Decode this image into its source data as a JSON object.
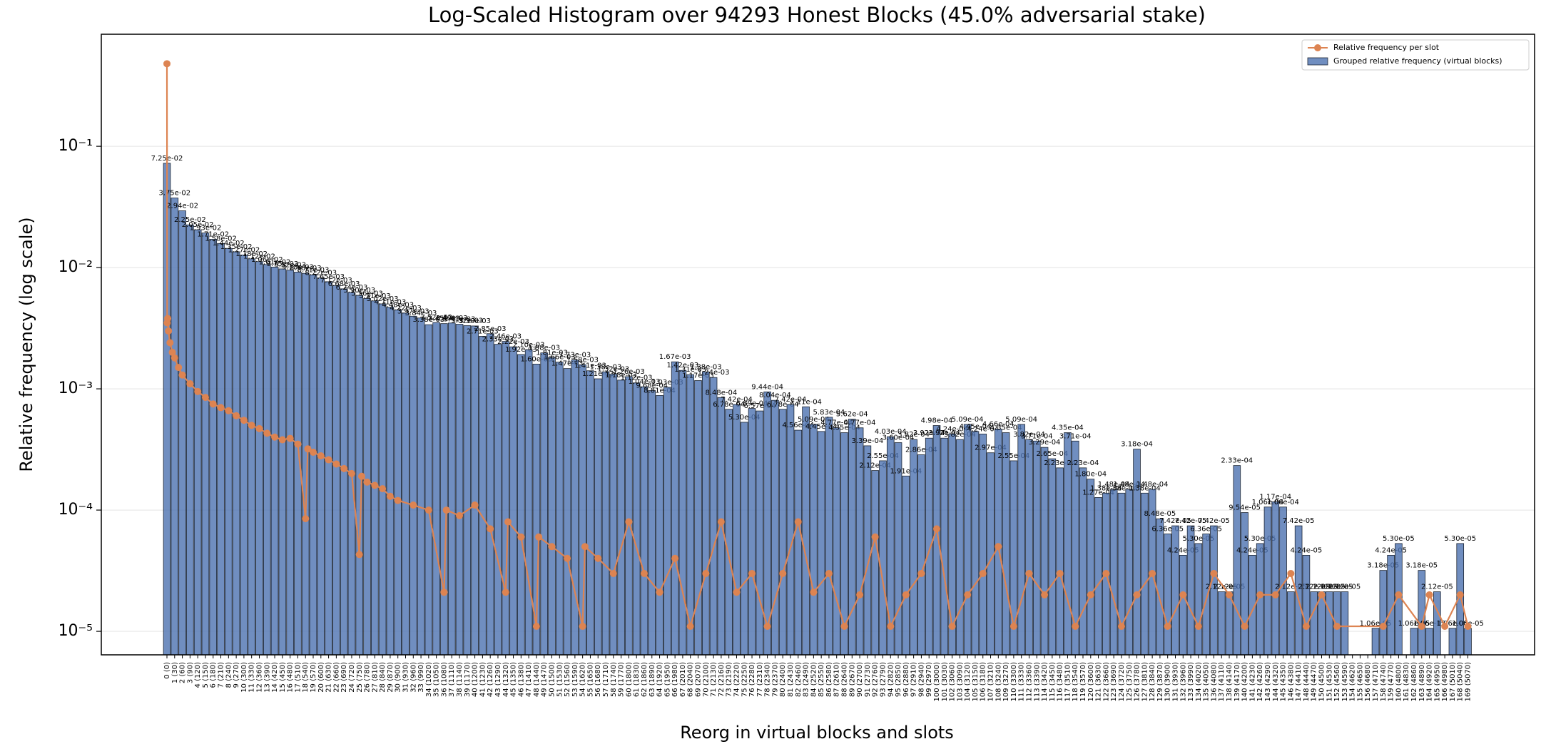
{
  "chart_data": {
    "type": "bar",
    "title": "Log-Scaled Histogram over 94293 Honest Blocks (45.0% adversarial stake)",
    "x_label": "Reorg in virtual blocks and slots",
    "y_label": "Relative frequency (log scale)",
    "log_scale": true,
    "grid": true,
    "legend": "upper right",
    "ylim": [
      6.4e-06,
      0.84
    ],
    "yticks": [
      {
        "value": 1e-05,
        "label": "10⁻⁵"
      },
      {
        "value": 0.0001,
        "label": "10⁻⁴"
      },
      {
        "value": 0.001,
        "label": "10⁻³"
      },
      {
        "value": 0.01,
        "label": "10⁻²"
      },
      {
        "value": 0.1,
        "label": "10⁻¹"
      }
    ],
    "categories": [
      "0 (0)",
      "1 (30)",
      "2 (60)",
      "3 (90)",
      "4 (120)",
      "5 (150)",
      "6 (180)",
      "7 (210)",
      "8 (240)",
      "9 (270)",
      "10 (300)",
      "11 (330)",
      "12 (360)",
      "13 (390)",
      "14 (420)",
      "15 (450)",
      "16 (480)",
      "17 (510)",
      "18 (540)",
      "19 (570)",
      "20 (600)",
      "21 (630)",
      "22 (660)",
      "23 (690)",
      "24 (720)",
      "25 (750)",
      "26 (780)",
      "27 (810)",
      "28 (840)",
      "29 (870)",
      "30 (900)",
      "31 (930)",
      "32 (960)",
      "33 (990)",
      "34 (1020)",
      "35 (1050)",
      "36 (1080)",
      "37 (1110)",
      "38 (1140)",
      "39 (1170)",
      "40 (1200)",
      "41 (1230)",
      "42 (1260)",
      "43 (1290)",
      "44 (1320)",
      "45 (1350)",
      "46 (1380)",
      "47 (1410)",
      "48 (1440)",
      "49 (1470)",
      "50 (1500)",
      "51 (1530)",
      "52 (1560)",
      "53 (1590)",
      "54 (1620)",
      "55 (1650)",
      "56 (1680)",
      "57 (1710)",
      "58 (1740)",
      "59 (1770)",
      "60 (1800)",
      "61 (1830)",
      "62 (1860)",
      "63 (1890)",
      "64 (1920)",
      "65 (1950)",
      "66 (1980)",
      "67 (2010)",
      "68 (2040)",
      "69 (2070)",
      "70 (2100)",
      "71 (2130)",
      "72 (2160)",
      "73 (2190)",
      "74 (2220)",
      "75 (2250)",
      "76 (2280)",
      "77 (2310)",
      "78 (2340)",
      "79 (2370)",
      "80 (2400)",
      "81 (2430)",
      "82 (2460)",
      "83 (2490)",
      "84 (2520)",
      "85 (2550)",
      "86 (2580)",
      "87 (2610)",
      "88 (2640)",
      "89 (2670)",
      "90 (2700)",
      "91 (2730)",
      "92 (2760)",
      "93 (2790)",
      "94 (2820)",
      "95 (2850)",
      "96 (2880)",
      "97 (2910)",
      "98 (2940)",
      "99 (2970)",
      "100 (3000)",
      "101 (3030)",
      "102 (3060)",
      "103 (3090)",
      "104 (3120)",
      "105 (3150)",
      "106 (3180)",
      "107 (3210)",
      "108 (3240)",
      "109 (3270)",
      "110 (3300)",
      "111 (3330)",
      "112 (3360)",
      "113 (3390)",
      "114 (3420)",
      "115 (3450)",
      "116 (3480)",
      "117 (3510)",
      "118 (3540)",
      "119 (3570)",
      "120 (3600)",
      "121 (3630)",
      "122 (3660)",
      "123 (3690)",
      "124 (3720)",
      "125 (3750)",
      "126 (3780)",
      "127 (3810)",
      "128 (3840)",
      "129 (3870)",
      "130 (3900)",
      "131 (3930)",
      "132 (3960)",
      "133 (3990)",
      "134 (4020)",
      "135 (4050)",
      "136 (4080)",
      "137 (4110)",
      "138 (4140)",
      "139 (4170)",
      "140 (4200)",
      "141 (4230)",
      "142 (4260)",
      "143 (4290)",
      "144 (4320)",
      "145 (4350)",
      "146 (4380)",
      "147 (4410)",
      "148 (4440)",
      "149 (4470)",
      "150 (4500)",
      "151 (4530)",
      "152 (4560)",
      "153 (4590)",
      "154 (4620)",
      "155 (4650)",
      "156 (4680)",
      "157 (4710)",
      "158 (4740)",
      "159 (4770)",
      "160 (4800)",
      "161 (4830)",
      "162 (4860)",
      "163 (4890)",
      "164 (4920)",
      "165 (4950)",
      "166 (4980)",
      "167 (5010)",
      "168 (5040)",
      "169 (5070)"
    ],
    "series": [
      {
        "name": "Relative frequency per slot",
        "type": "line",
        "color": "#dd8452",
        "x": [
          0,
          0.03,
          0.1,
          0.2,
          0.4,
          0.7,
          1,
          1.5,
          2,
          3,
          4,
          5,
          6,
          7,
          8,
          9,
          10,
          11,
          12,
          13,
          14,
          15,
          16,
          17,
          18,
          18.3,
          19,
          20,
          21,
          22,
          23,
          24,
          25,
          25.3,
          26,
          27,
          28,
          29,
          30,
          32,
          34,
          36,
          36.3,
          38,
          40,
          42,
          44,
          44.3,
          46,
          48,
          48.3,
          50,
          52,
          54,
          54.3,
          56,
          58,
          60,
          62,
          64,
          66,
          68,
          70,
          72,
          74,
          76,
          78,
          80,
          82,
          84,
          86,
          88,
          90,
          92,
          94,
          96,
          98,
          100,
          102,
          104,
          106,
          108,
          110,
          112,
          114,
          116,
          118,
          120,
          122,
          124,
          126,
          128,
          130,
          132,
          134,
          136,
          138,
          140,
          142,
          144,
          146,
          148,
          150,
          152,
          158,
          160,
          163,
          164,
          166,
          168,
          169
        ],
        "values": [
          0.48,
          0.0035,
          0.0038,
          0.003,
          0.0024,
          0.002,
          0.0018,
          0.0015,
          0.0013,
          0.0011,
          0.00095,
          0.00085,
          0.00075,
          0.0007,
          0.00066,
          0.0006,
          0.00055,
          0.0005,
          0.00047,
          0.00043,
          0.0004,
          0.00038,
          0.00039,
          0.00035,
          8.5e-05,
          0.00032,
          0.0003,
          0.00028,
          0.00026,
          0.00024,
          0.00022,
          0.0002,
          4.3e-05,
          0.00019,
          0.00017,
          0.00016,
          0.00015,
          0.00013,
          0.00012,
          0.00011,
          0.0001,
          2.1e-05,
          0.0001,
          9e-05,
          0.00011,
          7e-05,
          2.1e-05,
          8e-05,
          6e-05,
          1.1e-05,
          6e-05,
          5e-05,
          4e-05,
          1.1e-05,
          5e-05,
          4e-05,
          3e-05,
          8e-05,
          3e-05,
          2.1e-05,
          4e-05,
          1.1e-05,
          3e-05,
          8e-05,
          2.1e-05,
          3e-05,
          1.1e-05,
          3e-05,
          8e-05,
          2.1e-05,
          3e-05,
          1.1e-05,
          2e-05,
          6e-05,
          1.1e-05,
          2e-05,
          3e-05,
          7e-05,
          1.1e-05,
          2e-05,
          3e-05,
          5e-05,
          1.1e-05,
          3e-05,
          2e-05,
          3e-05,
          1.1e-05,
          2e-05,
          3e-05,
          1.1e-05,
          2e-05,
          3e-05,
          1.1e-05,
          2e-05,
          1.1e-05,
          3e-05,
          2e-05,
          1.1e-05,
          2e-05,
          2e-05,
          3e-05,
          1.1e-05,
          2e-05,
          1.1e-05,
          1.1e-05,
          2e-05,
          1.1e-05,
          2e-05,
          1.1e-05,
          2e-05,
          1.1e-05
        ]
      },
      {
        "name": "Grouped relative frequency (virtual blocks)",
        "type": "bar",
        "color": "#4c72b0",
        "values": [
          0.0725,
          0.0375,
          0.0294,
          0.0225,
          0.0205,
          0.0193,
          0.0171,
          0.0158,
          0.0144,
          0.0135,
          0.0127,
          0.0118,
          0.0112,
          0.0106,
          0.0101,
          0.00975,
          0.00952,
          0.00918,
          0.00896,
          0.00871,
          0.00822,
          0.00765,
          0.00712,
          0.00668,
          0.00624,
          0.0059,
          0.00556,
          0.00531,
          0.00502,
          0.00471,
          0.00448,
          0.00422,
          0.00397,
          0.00384,
          0.00338,
          0.00352,
          0.00345,
          0.00349,
          0.00341,
          0.00332,
          0.0033,
          0.00271,
          0.00285,
          0.00233,
          0.00246,
          0.00222,
          0.00192,
          0.0021,
          0.0016,
          0.00198,
          0.00181,
          0.00166,
          0.00147,
          0.00173,
          0.00158,
          0.00141,
          0.00121,
          0.00138,
          0.00132,
          0.00118,
          0.00126,
          0.00112,
          0.00104,
          0.000968,
          0.000881,
          0.00103,
          0.00167,
          0.00142,
          0.00131,
          0.00117,
          0.00138,
          0.00124,
          0.000848,
          0.000678,
          0.000742,
          0.00053,
          0.000689,
          0.000657,
          0.000944,
          0.000804,
          0.000678,
          0.000742,
          0.000456,
          0.000711,
          0.000509,
          0.000445,
          0.000583,
          0.000477,
          0.000435,
          0.000562,
          0.000477,
          0.000339,
          0.000212,
          0.000255,
          0.000403,
          0.00036,
          0.000191,
          0.000382,
          0.000286,
          0.000392,
          0.000498,
          0.000392,
          0.000424,
          0.000382,
          0.000509,
          0.000445,
          0.000424,
          0.000297,
          0.000466,
          0.000435,
          0.000255,
          0.000509,
          0.000382,
          0.000371,
          0.000329,
          0.000265,
          0.000223,
          0.000435,
          0.000371,
          0.000223,
          0.00018,
          0.000127,
          0.000138,
          0.000148,
          0.000138,
          0.000148,
          0.000318,
          0.000138,
          0.000148,
          8.48e-05,
          6.36e-05,
          7.42e-05,
          4.24e-05,
          7.42e-05,
          5.3e-05,
          6.36e-05,
          7.42e-05,
          2.12e-05,
          2.12e-05,
          0.000233,
          9.54e-05,
          4.24e-05,
          5.3e-05,
          0.000106,
          0.000117,
          0.000106,
          2.12e-05,
          7.42e-05,
          4.24e-05,
          2.12e-05,
          2.12e-05,
          2.12e-05,
          2.12e-05,
          2.12e-05,
          null,
          null,
          null,
          1.06e-05,
          3.18e-05,
          4.24e-05,
          5.3e-05,
          null,
          1.06e-05,
          3.18e-05,
          1.06e-05,
          2.12e-05,
          null,
          1.06e-05,
          5.3e-05,
          1.06e-05
        ],
        "value_labels": [
          "7.25e-02",
          "3.75e-02",
          "2.94e-02",
          "2.25e-02",
          "2.05e-02",
          "1.93e-02",
          "1.71e-02",
          "1.58e-02",
          "1.44e-02",
          "1.35e-02",
          "1.27e-02",
          "1.18e-02",
          "1.12e-02",
          "1.06e-02",
          "1.01e-02",
          "9.75e-03",
          "9.52e-03",
          "9.18e-03",
          "8.96e-03",
          "8.71e-03",
          "8.22e-03",
          "7.65e-03",
          "7.12e-03",
          "6.68e-03",
          "6.24e-03",
          "5.90e-03",
          "5.56e-03",
          "5.31e-03",
          "5.02e-03",
          "4.71e-03",
          "4.48e-03",
          "4.22e-03",
          "3.97e-03",
          "3.84e-03",
          "3.38e-03",
          "3.52e-03",
          "3.45e-03",
          "3.49e-03",
          "3.41e-03",
          "3.32e-03",
          "3.30e-03",
          "2.71e-03",
          "2.85e-03",
          "2.33e-03",
          "2.46e-03",
          "2.22e-03",
          "1.92e-03",
          "2.10e-03",
          "1.60e-03",
          "1.98e-03",
          "1.81e-03",
          "1.66e-03",
          "1.47e-03",
          "1.73e-03",
          "1.58e-03",
          "1.41e-03",
          "1.21e-03",
          "1.38e-03",
          "1.32e-03",
          "1.18e-03",
          "1.26e-03",
          "1.12e-03",
          "1.04e-03",
          "9.68e-04",
          "8.81e-04",
          "1.03e-03",
          "1.67e-03",
          "1.42e-03",
          "1.31e-03",
          "1.17e-03",
          "1.38e-03",
          "1.24e-03",
          "8.48e-04",
          "6.78e-04",
          "7.42e-04",
          "5.30e-04",
          "6.89e-04",
          "6.57e-04",
          "9.44e-04",
          "8.04e-04",
          "6.78e-04",
          "7.42e-04",
          "4.56e-04",
          "7.11e-04",
          "5.09e-04",
          "4.45e-04",
          "5.83e-04",
          "4.77e-04",
          "4.35e-04",
          "5.62e-04",
          "4.77e-04",
          "3.39e-04",
          "2.12e-04",
          "2.55e-04",
          "4.03e-04",
          "3.60e-04",
          "1.91e-04",
          "3.82e-04",
          "2.86e-04",
          "3.92e-04",
          "4.98e-04",
          "3.92e-04",
          "4.24e-04",
          "3.82e-04",
          "5.09e-04",
          "4.45e-04",
          "4.24e-04",
          "2.97e-04",
          "4.66e-04",
          "4.35e-04",
          "2.55e-04",
          "5.09e-04",
          "3.82e-04",
          "3.71e-04",
          "3.29e-04",
          "2.65e-04",
          "2.23e-04",
          "4.35e-04",
          "3.71e-04",
          "2.23e-04",
          "1.80e-04",
          "1.27e-04",
          "1.38e-04",
          "1.48e-04",
          "1.38e-04",
          "1.48e-04",
          "3.18e-04",
          "1.38e-04",
          "1.48e-04",
          "8.48e-05",
          "6.36e-05",
          "7.42e-05",
          "4.24e-05",
          "7.42e-05",
          "5.30e-05",
          "6.36e-05",
          "7.42e-05",
          "2.12e-05",
          "2.12e-05",
          "2.33e-04",
          "9.54e-05",
          "4.24e-05",
          "5.30e-05",
          "1.06e-04",
          "1.17e-04",
          "1.06e-04",
          "2.12e-05",
          "7.42e-05",
          "4.24e-05",
          "2.12e-05",
          "2.12e-05",
          "2.12e-05",
          "2.12e-05",
          "2.12e-05",
          null,
          null,
          null,
          "1.06e-05",
          "3.18e-05",
          "4.24e-05",
          "5.30e-05",
          null,
          "1.06e-05",
          "3.18e-05",
          "1.06e-05",
          "2.12e-05",
          null,
          "1.06e-05",
          "5.30e-05",
          "1.06e-05"
        ]
      }
    ]
  }
}
